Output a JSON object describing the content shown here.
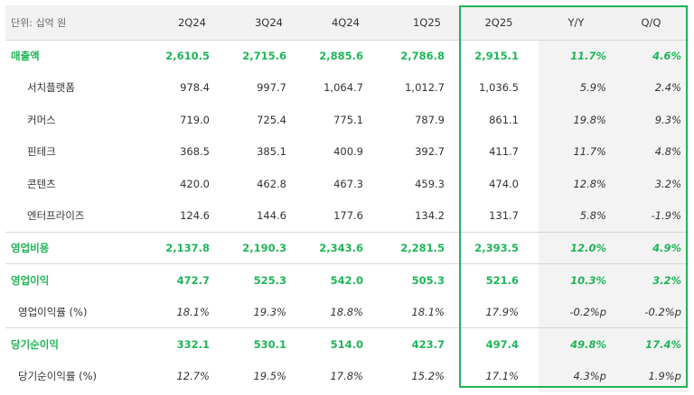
{
  "table": {
    "unit_label": "단위: 십억 원",
    "columns": [
      "2Q24",
      "3Q24",
      "4Q24",
      "1Q25",
      "2Q25",
      "Y/Y",
      "Q/Q"
    ],
    "rows": [
      {
        "label": "매출액",
        "kind": "major",
        "values": [
          "2,610.5",
          "2,715.6",
          "2,885.6",
          "2,786.8",
          "2,915.1",
          "11.7%",
          "4.6%"
        ]
      },
      {
        "label": "서치플랫폼",
        "kind": "sub",
        "values": [
          "978.4",
          "997.7",
          "1,064.7",
          "1,012.7",
          "1,036.5",
          "5.9%",
          "2.4%"
        ]
      },
      {
        "label": "커머스",
        "kind": "sub",
        "values": [
          "719.0",
          "725.4",
          "775.1",
          "787.9",
          "861.1",
          "19.8%",
          "9.3%"
        ]
      },
      {
        "label": "핀테크",
        "kind": "sub",
        "values": [
          "368.5",
          "385.1",
          "400.9",
          "392.7",
          "411.7",
          "11.7%",
          "4.8%"
        ]
      },
      {
        "label": "콘텐츠",
        "kind": "sub",
        "values": [
          "420.0",
          "462.8",
          "467.3",
          "459.3",
          "474.0",
          "12.8%",
          "3.2%"
        ]
      },
      {
        "label": "엔터프라이즈",
        "kind": "sub",
        "values": [
          "124.6",
          "144.6",
          "177.6",
          "134.2",
          "131.7",
          "5.8%",
          "-1.9%"
        ]
      },
      {
        "label": "영업비용",
        "kind": "major",
        "values": [
          "2,137.8",
          "2,190.3",
          "2,343.6",
          "2,281.5",
          "2,393.5",
          "12.0%",
          "4.9%"
        ]
      },
      {
        "label": "영업이익",
        "kind": "major",
        "values": [
          "472.7",
          "525.3",
          "542.0",
          "505.3",
          "521.6",
          "10.3%",
          "3.2%"
        ]
      },
      {
        "label": "영업이익률 (%)",
        "kind": "ratio",
        "values": [
          "18.1%",
          "19.3%",
          "18.8%",
          "18.1%",
          "17.9%",
          "-0.2%p",
          "-0.2%p"
        ]
      },
      {
        "label": "당기순이익",
        "kind": "major",
        "values": [
          "332.1",
          "530.1",
          "514.0",
          "423.7",
          "497.4",
          "49.8%",
          "17.4%"
        ]
      },
      {
        "label": "당기순이익률 (%)",
        "kind": "ratio",
        "values": [
          "12.7%",
          "19.5%",
          "17.8%",
          "15.2%",
          "17.1%",
          "4.3%p",
          "1.9%p"
        ]
      }
    ]
  },
  "colors": {
    "accent": "#1fb557",
    "header_bg": "#f2f2f2",
    "change_bg": "#f3f3f3"
  }
}
